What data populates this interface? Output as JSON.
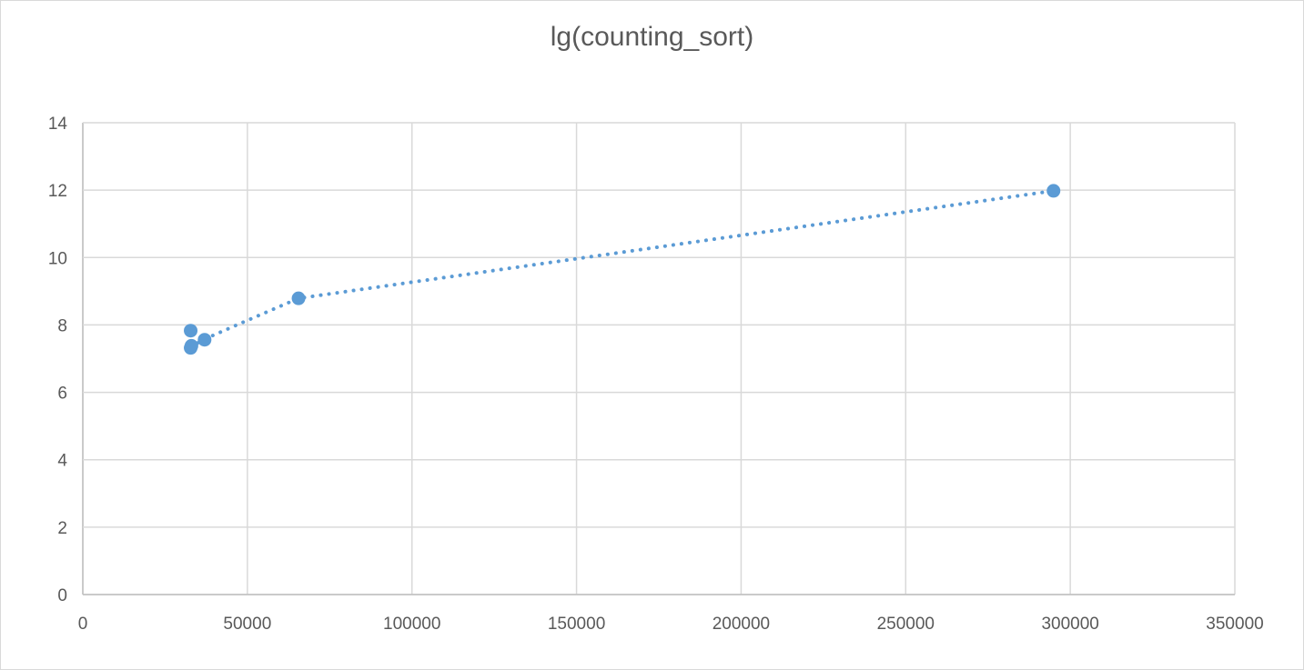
{
  "chart_data": {
    "type": "scatter",
    "title": "lg(counting_sort)",
    "xlabel": "",
    "ylabel": "",
    "xlim": [
      0,
      350000
    ],
    "ylim": [
      0,
      14
    ],
    "x_ticks": [
      0,
      50000,
      100000,
      150000,
      200000,
      250000,
      300000,
      350000
    ],
    "y_ticks": [
      0,
      2,
      4,
      6,
      8,
      10,
      12,
      14
    ],
    "x_tick_labels": [
      "0",
      "50000",
      "100000",
      "150000",
      "200000",
      "250000",
      "300000",
      "350000"
    ],
    "y_tick_labels": [
      "0",
      "2",
      "4",
      "6",
      "8",
      "10",
      "12",
      "14"
    ],
    "grid": true,
    "legend": "none",
    "series": [
      {
        "color": "#5b9bd5",
        "points": [
          {
            "x": 32768,
            "y": 7.32
          },
          {
            "x": 33000,
            "y": 7.38
          },
          {
            "x": 32768,
            "y": 7.83
          },
          {
            "x": 37000,
            "y": 7.56
          },
          {
            "x": 65536,
            "y": 8.79
          },
          {
            "x": 294912,
            "y": 11.98
          }
        ],
        "trendline": {
          "style": "dotted",
          "color": "#5b9bd5",
          "points": [
            {
              "x": 32768,
              "y": 7.35
            },
            {
              "x": 37000,
              "y": 7.58
            },
            {
              "x": 48000,
              "y": 8.05
            },
            {
              "x": 65536,
              "y": 8.79
            },
            {
              "x": 294912,
              "y": 11.98
            }
          ]
        }
      }
    ]
  }
}
